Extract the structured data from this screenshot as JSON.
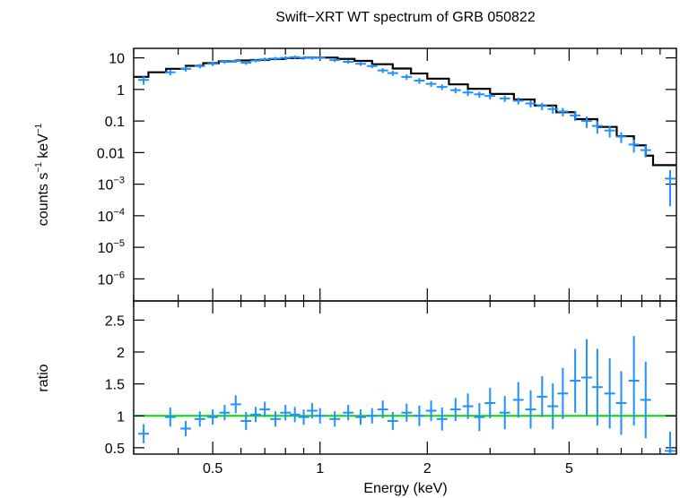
{
  "chart_data": [
    {
      "type": "scatter",
      "title": "Swift−XRT WT spectrum of GRB 050822",
      "ylabel_base": "counts s",
      "ylabel_exp1": "−1",
      "ylabel_mid": " keV",
      "ylabel_exp2": "−1",
      "x_scale": "log",
      "y_scale": "log",
      "xlim": [
        0.3,
        10
      ],
      "ylim": [
        2e-07,
        20
      ],
      "yticks": [
        {
          "v": 10,
          "m": "10",
          "e": ""
        },
        {
          "v": 1,
          "m": "1",
          "e": ""
        },
        {
          "v": 0.1,
          "m": "0.1",
          "e": ""
        },
        {
          "v": 0.01,
          "m": "0.01",
          "e": ""
        },
        {
          "v": 0.001,
          "m": "10",
          "e": "−3"
        },
        {
          "v": 0.0001,
          "m": "10",
          "e": "−4"
        },
        {
          "v": 1e-05,
          "m": "10",
          "e": "−5"
        },
        {
          "v": 1e-06,
          "m": "10",
          "e": "−6"
        }
      ],
      "data_color": "#1e90ff",
      "model_color": "#000000",
      "series": [
        {
          "kind": "data",
          "x": [
            0.32,
            0.38,
            0.42,
            0.46,
            0.5,
            0.54,
            0.58,
            0.62,
            0.66,
            0.7,
            0.75,
            0.8,
            0.85,
            0.9,
            0.95,
            1.0,
            1.1,
            1.2,
            1.3,
            1.4,
            1.5,
            1.6,
            1.75,
            1.9,
            2.05,
            2.2,
            2.4,
            2.6,
            2.8,
            3.0,
            3.3,
            3.6,
            3.9,
            4.2,
            4.5,
            4.8,
            5.2,
            5.6,
            6.0,
            6.5,
            7.0,
            7.6,
            8.2,
            9.6
          ],
          "y": [
            2.0,
            3.5,
            4.5,
            5.5,
            6.5,
            7.5,
            8.0,
            7.0,
            8.2,
            9.0,
            9.5,
            10.0,
            10.5,
            10.0,
            10.0,
            10.0,
            8.5,
            7.5,
            6.5,
            5.5,
            4.0,
            3.3,
            2.5,
            1.9,
            1.5,
            1.2,
            0.95,
            0.8,
            0.7,
            0.62,
            0.52,
            0.44,
            0.36,
            0.3,
            0.24,
            0.2,
            0.15,
            0.1,
            0.07,
            0.05,
            0.032,
            0.018,
            0.012,
            0.0015
          ],
          "err": [
            0.6,
            0.7,
            0.8,
            0.9,
            1.0,
            1.0,
            1.0,
            1.0,
            1.0,
            1.2,
            1.2,
            1.3,
            1.3,
            1.3,
            1.3,
            1.3,
            1.1,
            1.0,
            0.9,
            0.8,
            0.7,
            0.6,
            0.5,
            0.4,
            0.3,
            0.25,
            0.2,
            0.18,
            0.15,
            0.14,
            0.12,
            0.11,
            0.09,
            0.08,
            0.07,
            0.06,
            0.05,
            0.04,
            0.03,
            0.02,
            0.012,
            0.008,
            0.005,
            0.0013
          ]
        },
        {
          "kind": "model",
          "x": [
            0.3,
            0.33,
            0.37,
            0.42,
            0.47,
            0.52,
            0.58,
            0.64,
            0.72,
            0.8,
            0.9,
            1.0,
            1.12,
            1.25,
            1.4,
            1.6,
            1.8,
            2.0,
            2.3,
            2.6,
            3.0,
            3.5,
            4.0,
            4.6,
            5.2,
            6.0,
            6.8,
            7.6,
            8.2,
            8.6,
            9.2,
            10.0
          ],
          "y": [
            2.5,
            3.5,
            4.5,
            5.6,
            6.8,
            7.8,
            8.3,
            8.6,
            9.2,
            9.8,
            10.2,
            10.2,
            9.3,
            8.0,
            6.3,
            4.6,
            3.2,
            2.2,
            1.45,
            1.05,
            0.72,
            0.48,
            0.31,
            0.19,
            0.115,
            0.065,
            0.033,
            0.017,
            0.008,
            0.004,
            0.004,
            0.004
          ]
        }
      ]
    },
    {
      "type": "scatter",
      "xlabel": "Energy (keV)",
      "ylabel": "ratio",
      "x_scale": "log",
      "y_scale": "linear",
      "xlim": [
        0.3,
        10
      ],
      "ylim": [
        0.4,
        2.8
      ],
      "yticks": [
        {
          "v": 0.5,
          "m": "0.5"
        },
        {
          "v": 1,
          "m": "1"
        },
        {
          "v": 1.5,
          "m": "1.5"
        },
        {
          "v": 2,
          "m": "2"
        },
        {
          "v": 2.5,
          "m": "2.5"
        }
      ],
      "xticks": [
        {
          "v": 0.5,
          "m": "0.5"
        },
        {
          "v": 1,
          "m": "1"
        },
        {
          "v": 2,
          "m": "2"
        },
        {
          "v": 5,
          "m": "5"
        }
      ],
      "reference_line": 1,
      "reference_color": "#00dd00",
      "series": [
        {
          "kind": "data",
          "x": [
            0.32,
            0.38,
            0.42,
            0.46,
            0.5,
            0.54,
            0.58,
            0.62,
            0.66,
            0.7,
            0.75,
            0.8,
            0.85,
            0.9,
            0.95,
            1.0,
            1.1,
            1.2,
            1.3,
            1.4,
            1.5,
            1.6,
            1.75,
            1.9,
            2.05,
            2.2,
            2.4,
            2.6,
            2.8,
            3.0,
            3.3,
            3.6,
            3.9,
            4.2,
            4.5,
            4.8,
            5.2,
            5.6,
            6.0,
            6.5,
            7.0,
            7.6,
            8.2,
            9.6
          ],
          "y": [
            0.72,
            0.98,
            0.8,
            0.95,
            0.98,
            1.05,
            1.18,
            0.92,
            1.02,
            1.1,
            0.95,
            1.05,
            1.02,
            0.98,
            1.08,
            1.0,
            0.95,
            1.05,
            0.98,
            1.0,
            1.1,
            0.92,
            1.05,
            1.0,
            1.08,
            0.95,
            1.1,
            1.15,
            0.98,
            1.2,
            1.05,
            1.25,
            1.1,
            1.3,
            1.15,
            1.35,
            1.55,
            1.6,
            1.45,
            1.35,
            1.2,
            1.55,
            1.25,
            0.45
          ],
          "err": [
            0.15,
            0.15,
            0.12,
            0.12,
            0.12,
            0.12,
            0.14,
            0.14,
            0.12,
            0.12,
            0.12,
            0.12,
            0.12,
            0.12,
            0.12,
            0.12,
            0.12,
            0.12,
            0.12,
            0.12,
            0.14,
            0.14,
            0.14,
            0.16,
            0.16,
            0.18,
            0.18,
            0.2,
            0.22,
            0.24,
            0.26,
            0.28,
            0.3,
            0.32,
            0.36,
            0.4,
            0.5,
            0.6,
            0.6,
            0.55,
            0.5,
            0.7,
            0.6,
            0.3
          ]
        }
      ]
    }
  ]
}
